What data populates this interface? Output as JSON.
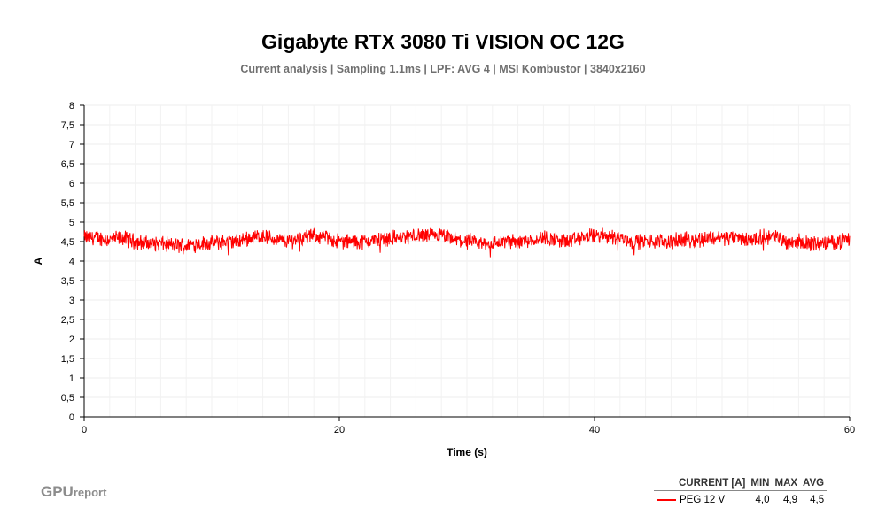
{
  "chart_data": {
    "type": "line",
    "title": "Gigabyte RTX 3080 Ti VISION OC 12G",
    "subtitle": "Current analysis | Sampling 1.1ms | LPF: AVG 4 |  MSI Kombustor | 3840x2160",
    "xlabel": "Time (s)",
    "ylabel": "A",
    "xlim": [
      0,
      60
    ],
    "ylim": [
      0,
      8
    ],
    "x_ticks": [
      "0",
      "20",
      "40",
      "60"
    ],
    "y_ticks": [
      "0",
      "0,5",
      "1",
      "1,5",
      "2",
      "2,5",
      "3",
      "3,5",
      "4",
      "4,5",
      "5",
      "5,5",
      "6",
      "6,5",
      "7",
      "7,5",
      "8"
    ],
    "grid": true,
    "series": [
      {
        "name": "PEG 12 V",
        "color": "#ff0000",
        "min": "4,0",
        "max": "4,9",
        "avg": "4,5",
        "x": [
          0,
          1,
          2,
          3,
          4,
          5,
          6,
          7,
          8,
          9,
          10,
          11,
          12,
          13,
          14,
          15,
          16,
          17,
          18,
          19,
          20,
          21,
          22,
          23,
          24,
          25,
          26,
          27,
          28,
          29,
          30,
          31,
          32,
          33,
          34,
          35,
          36,
          37,
          38,
          39,
          40,
          41,
          42,
          43,
          44,
          45,
          46,
          47,
          48,
          49,
          50,
          51,
          52,
          53,
          54,
          55,
          56,
          57,
          58,
          59,
          60
        ],
        "values": [
          4.6,
          4.6,
          4.55,
          4.6,
          4.5,
          4.45,
          4.45,
          4.4,
          4.4,
          4.45,
          4.45,
          4.5,
          4.5,
          4.6,
          4.65,
          4.55,
          4.5,
          4.6,
          4.65,
          4.6,
          4.5,
          4.5,
          4.5,
          4.55,
          4.6,
          4.6,
          4.65,
          4.65,
          4.65,
          4.55,
          4.5,
          4.45,
          4.45,
          4.5,
          4.5,
          4.55,
          4.6,
          4.55,
          4.5,
          4.6,
          4.65,
          4.65,
          4.6,
          4.5,
          4.5,
          4.5,
          4.5,
          4.55,
          4.55,
          4.6,
          4.6,
          4.6,
          4.55,
          4.6,
          4.65,
          4.5,
          4.5,
          4.45,
          4.45,
          4.5,
          4.55
        ]
      }
    ]
  },
  "legend": {
    "headers": [
      "CURRENT [A]",
      "MIN",
      "MAX",
      "AVG"
    ]
  },
  "logo": {
    "big": "GPU",
    "small": "report"
  }
}
